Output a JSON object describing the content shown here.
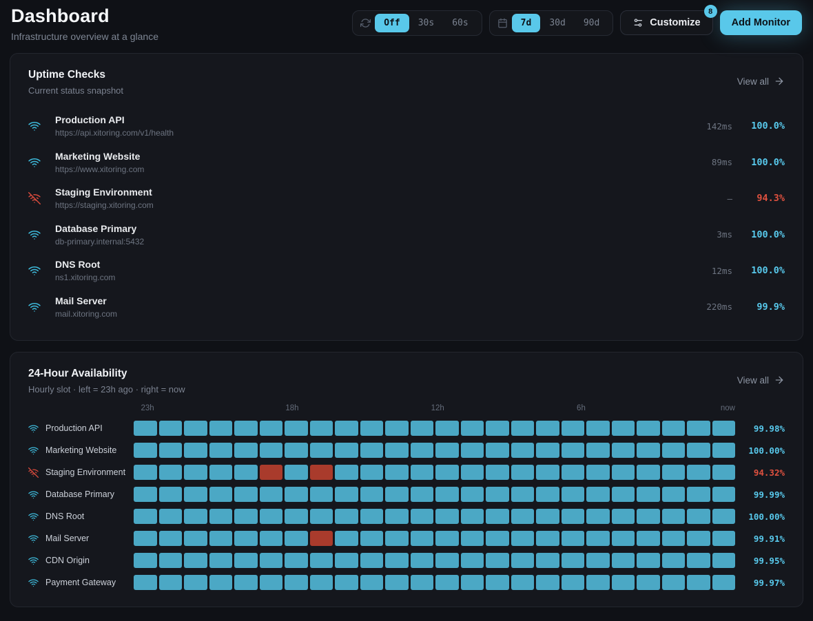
{
  "header": {
    "title": "Dashboard",
    "subtitle": "Infrastructure overview at a glance",
    "refresh": {
      "icon": "refresh-icon",
      "options": [
        "Off",
        "30s",
        "60s"
      ],
      "selected": "Off"
    },
    "range": {
      "icon": "calendar-icon",
      "options": [
        "7d",
        "30d",
        "90d"
      ],
      "selected": "7d"
    },
    "customize": {
      "icon": "sliders-icon",
      "label": "Customize",
      "badge": "8"
    },
    "add_monitor_label": "Add Monitor"
  },
  "uptime_checks": {
    "title": "Uptime Checks",
    "subtitle": "Current status snapshot",
    "view_all_label": "View all",
    "view_all_icon": "arrow-right-icon",
    "monitors": [
      {
        "name": "Production API",
        "url": "https://api.xitoring.com/v1/health",
        "response_time": "142ms",
        "uptime": "100.0%",
        "status": "up"
      },
      {
        "name": "Marketing Website",
        "url": "https://www.xitoring.com",
        "response_time": "89ms",
        "uptime": "100.0%",
        "status": "up"
      },
      {
        "name": "Staging Environment",
        "url": "https://staging.xitoring.com",
        "response_time": "—",
        "uptime": "94.3%",
        "status": "down"
      },
      {
        "name": "Database Primary",
        "url": "db-primary.internal:5432",
        "response_time": "3ms",
        "uptime": "100.0%",
        "status": "up"
      },
      {
        "name": "DNS Root",
        "url": "ns1.xitoring.com",
        "response_time": "12ms",
        "uptime": "100.0%",
        "status": "up"
      },
      {
        "name": "Mail Server",
        "url": "mail.xitoring.com",
        "response_time": "220ms",
        "uptime": "99.9%",
        "status": "up"
      }
    ]
  },
  "availability": {
    "title": "24-Hour Availability",
    "subtitle": "Hourly slot · left = 23h ago · right = now",
    "view_all_label": "View all",
    "view_all_icon": "arrow-right-icon",
    "time_labels": [
      "23h",
      "18h",
      "12h",
      "6h",
      "now"
    ],
    "slots_per_row": 24,
    "rows": [
      {
        "name": "Production API",
        "status": "up",
        "uptime": "99.98%",
        "down_slots": []
      },
      {
        "name": "Marketing Website",
        "status": "up",
        "uptime": "100.00%",
        "down_slots": []
      },
      {
        "name": "Staging Environment",
        "status": "down",
        "uptime": "94.32%",
        "down_slots": [
          5,
          7
        ]
      },
      {
        "name": "Database Primary",
        "status": "up",
        "uptime": "99.99%",
        "down_slots": []
      },
      {
        "name": "DNS Root",
        "status": "up",
        "uptime": "100.00%",
        "down_slots": []
      },
      {
        "name": "Mail Server",
        "status": "up",
        "uptime": "99.91%",
        "down_slots": [
          7
        ]
      },
      {
        "name": "CDN Origin",
        "status": "up",
        "uptime": "99.95%",
        "down_slots": []
      },
      {
        "name": "Payment Gateway",
        "status": "up",
        "uptime": "99.97%",
        "down_slots": []
      }
    ]
  },
  "icons": {
    "monitor_up": "wifi-icon",
    "monitor_down": "wifi-off-icon"
  },
  "colors": {
    "accent": "#59c8ea",
    "slot_up": "#4ba8c5",
    "slot_down": "#a93b2c",
    "down_text": "#e0513f",
    "card_bg": "#15171d",
    "page_bg": "#0f1116"
  }
}
